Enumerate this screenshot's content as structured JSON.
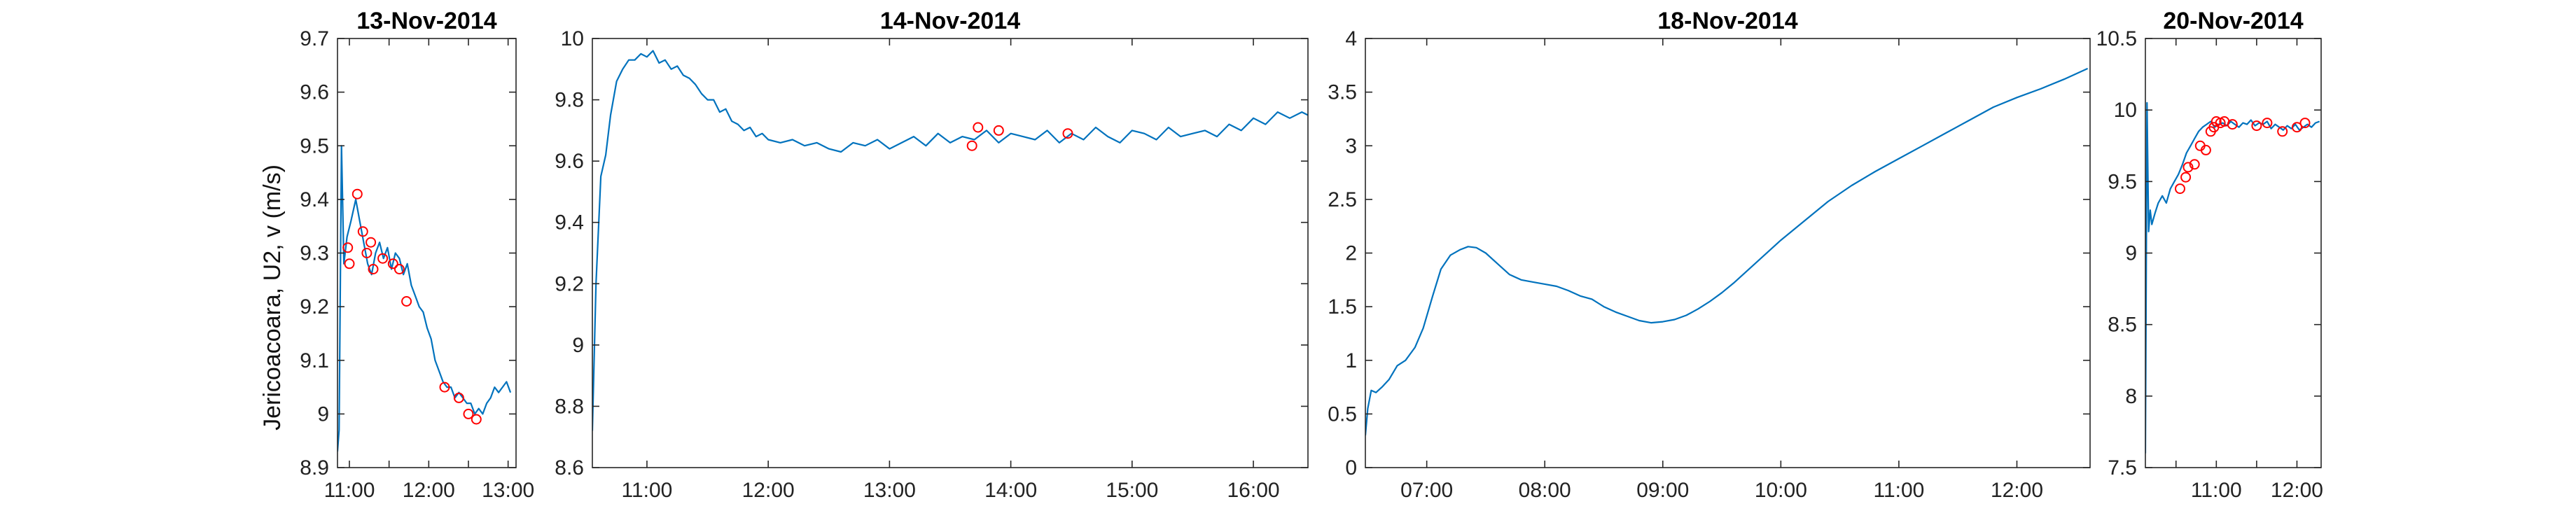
{
  "colors": {
    "series": "#0072BD",
    "markers": "#FF0000",
    "axes": "#262626"
  },
  "figure": {
    "shared_ylabel": "Jericoacoara, U2, v (m/s)"
  },
  "chart_data": [
    {
      "type": "line",
      "title": "13-Nov-2014",
      "xlabel": "",
      "ylabel": "Jericoacoara, U2, v (m/s)",
      "x_unit": "hour of day (decimal)",
      "xlim": [
        10.85,
        13.1
      ],
      "ylim": [
        8.9,
        9.7
      ],
      "xticks": [
        11,
        11.5,
        12,
        12.5,
        13
      ],
      "xtick_labels": [
        "11:00",
        "",
        "12:00",
        "",
        "13:00"
      ],
      "yticks": [
        8.9,
        9.0,
        9.1,
        9.2,
        9.3,
        9.4,
        9.5,
        9.6,
        9.7
      ],
      "ytick_labels": [
        "8.9",
        "9",
        "9.1",
        "9.2",
        "9.3",
        "9.4",
        "9.5",
        "9.6",
        "9.7"
      ],
      "grid": false,
      "series": [
        {
          "style": "line",
          "x": [
            10.85,
            10.87,
            10.9,
            10.93,
            10.97,
            11.02,
            11.08,
            11.13,
            11.18,
            11.23,
            11.28,
            11.33,
            11.38,
            11.43,
            11.48,
            11.53,
            11.58,
            11.63,
            11.68,
            11.73,
            11.78,
            11.83,
            11.88,
            11.93,
            11.98,
            12.03,
            12.08,
            12.13,
            12.18,
            12.23,
            12.28,
            12.33,
            12.38,
            12.43,
            12.48,
            12.53,
            12.58,
            12.63,
            12.68,
            12.73,
            12.78,
            12.83,
            12.88,
            12.93,
            12.98,
            13.03
          ],
          "y": [
            8.93,
            8.97,
            9.5,
            9.28,
            9.33,
            9.36,
            9.4,
            9.36,
            9.32,
            9.28,
            9.26,
            9.3,
            9.32,
            9.29,
            9.31,
            9.27,
            9.3,
            9.29,
            9.26,
            9.28,
            9.24,
            9.22,
            9.2,
            9.19,
            9.16,
            9.14,
            9.1,
            9.08,
            9.06,
            9.05,
            9.05,
            9.03,
            9.04,
            9.03,
            9.02,
            9.02,
            9.0,
            9.01,
            9.0,
            9.02,
            9.03,
            9.05,
            9.04,
            9.05,
            9.06,
            9.04
          ]
        },
        {
          "style": "markers",
          "x": [
            10.98,
            11.0,
            11.1,
            11.17,
            11.22,
            11.27,
            11.3,
            11.42,
            11.55,
            11.63,
            11.72,
            12.2,
            12.38,
            12.5,
            12.6
          ],
          "y": [
            9.31,
            9.28,
            9.41,
            9.34,
            9.3,
            9.32,
            9.27,
            9.29,
            9.28,
            9.27,
            9.21,
            9.05,
            9.03,
            9.0,
            8.99
          ]
        }
      ]
    },
    {
      "type": "line",
      "title": "14-Nov-2014",
      "xlabel": "",
      "ylabel": "",
      "x_unit": "hour of day (decimal)",
      "xlim": [
        10.55,
        16.45
      ],
      "ylim": [
        8.6,
        10.0
      ],
      "xticks": [
        11,
        12,
        13,
        14,
        15,
        16
      ],
      "xtick_labels": [
        "11:00",
        "12:00",
        "13:00",
        "14:00",
        "15:00",
        "16:00"
      ],
      "yticks": [
        8.6,
        8.8,
        9.0,
        9.2,
        9.4,
        9.6,
        9.8,
        10.0
      ],
      "ytick_labels": [
        "8.6",
        "8.8",
        "9",
        "9.2",
        "9.4",
        "9.6",
        "9.8",
        "10"
      ],
      "grid": false,
      "series": [
        {
          "style": "line",
          "x": [
            10.55,
            10.58,
            10.62,
            10.66,
            10.7,
            10.75,
            10.8,
            10.85,
            10.9,
            10.95,
            11.0,
            11.05,
            11.1,
            11.15,
            11.2,
            11.25,
            11.3,
            11.35,
            11.4,
            11.45,
            11.5,
            11.55,
            11.6,
            11.65,
            11.7,
            11.75,
            11.8,
            11.85,
            11.9,
            11.95,
            12.0,
            12.1,
            12.2,
            12.3,
            12.4,
            12.5,
            12.6,
            12.7,
            12.8,
            12.9,
            13.0,
            13.1,
            13.2,
            13.3,
            13.4,
            13.5,
            13.6,
            13.7,
            13.8,
            13.9,
            14.0,
            14.1,
            14.2,
            14.3,
            14.4,
            14.5,
            14.6,
            14.7,
            14.8,
            14.9,
            15.0,
            15.1,
            15.2,
            15.3,
            15.4,
            15.5,
            15.6,
            15.7,
            15.8,
            15.9,
            16.0,
            16.1,
            16.2,
            16.3,
            16.4,
            16.45
          ],
          "y": [
            8.72,
            9.2,
            9.55,
            9.62,
            9.75,
            9.86,
            9.9,
            9.93,
            9.93,
            9.95,
            9.94,
            9.96,
            9.92,
            9.93,
            9.9,
            9.91,
            9.88,
            9.87,
            9.85,
            9.82,
            9.8,
            9.8,
            9.76,
            9.77,
            9.73,
            9.72,
            9.7,
            9.71,
            9.68,
            9.69,
            9.67,
            9.66,
            9.67,
            9.65,
            9.66,
            9.64,
            9.63,
            9.66,
            9.65,
            9.67,
            9.64,
            9.66,
            9.68,
            9.65,
            9.69,
            9.66,
            9.68,
            9.67,
            9.7,
            9.66,
            9.69,
            9.68,
            9.67,
            9.7,
            9.66,
            9.69,
            9.67,
            9.71,
            9.68,
            9.66,
            9.7,
            9.69,
            9.67,
            9.71,
            9.68,
            9.69,
            9.7,
            9.68,
            9.72,
            9.7,
            9.74,
            9.72,
            9.76,
            9.74,
            9.76,
            9.75
          ]
        },
        {
          "style": "markers",
          "x": [
            13.68,
            13.73,
            13.9,
            14.47
          ],
          "y": [
            9.65,
            9.71,
            9.7,
            9.69
          ]
        }
      ]
    },
    {
      "type": "line",
      "title": "18-Nov-2014",
      "xlabel": "",
      "ylabel": "",
      "x_unit": "hour of day (decimal)",
      "xlim": [
        6.48,
        12.62
      ],
      "ylim": [
        0,
        4
      ],
      "xticks": [
        7,
        8,
        9,
        10,
        11,
        12
      ],
      "xtick_labels": [
        "07:00",
        "08:00",
        "09:00",
        "10:00",
        "11:00",
        "12:00"
      ],
      "yticks": [
        0,
        0.5,
        1,
        1.5,
        2,
        2.5,
        3,
        3.5,
        4
      ],
      "ytick_labels": [
        "0",
        "0.5",
        "1",
        "1.5",
        "2",
        "2.5",
        "3",
        "3.5",
        "4"
      ],
      "grid": false,
      "series": [
        {
          "style": "line",
          "x": [
            6.48,
            6.5,
            6.53,
            6.57,
            6.62,
            6.68,
            6.75,
            6.82,
            6.9,
            6.97,
            7.05,
            7.12,
            7.2,
            7.28,
            7.35,
            7.42,
            7.5,
            7.6,
            7.7,
            7.8,
            7.9,
            8.0,
            8.1,
            8.2,
            8.3,
            8.4,
            8.5,
            8.6,
            8.7,
            8.8,
            8.9,
            9.0,
            9.1,
            9.2,
            9.3,
            9.4,
            9.5,
            9.6,
            9.7,
            9.8,
            9.9,
            10.0,
            10.2,
            10.4,
            10.6,
            10.8,
            11.0,
            11.2,
            11.4,
            11.6,
            11.8,
            12.0,
            12.2,
            12.4,
            12.6
          ],
          "y": [
            0.3,
            0.55,
            0.72,
            0.7,
            0.75,
            0.82,
            0.95,
            1.0,
            1.12,
            1.3,
            1.6,
            1.85,
            1.98,
            2.03,
            2.06,
            2.05,
            2.0,
            1.9,
            1.8,
            1.75,
            1.73,
            1.71,
            1.69,
            1.65,
            1.6,
            1.57,
            1.5,
            1.45,
            1.41,
            1.37,
            1.35,
            1.36,
            1.38,
            1.42,
            1.48,
            1.55,
            1.63,
            1.72,
            1.82,
            1.92,
            2.02,
            2.12,
            2.3,
            2.48,
            2.63,
            2.76,
            2.88,
            3.0,
            3.12,
            3.24,
            3.36,
            3.45,
            3.53,
            3.62,
            3.72
          ]
        }
      ]
    },
    {
      "type": "line",
      "title": "20-Nov-2014",
      "xlabel": "",
      "ylabel": "",
      "x_unit": "hour of day (decimal)",
      "xlim": [
        10.12,
        12.3
      ],
      "ylim": [
        7.5,
        10.5
      ],
      "xticks": [
        10.5,
        11,
        11.5,
        12
      ],
      "xtick_labels": [
        "",
        "11:00",
        "",
        "12:00"
      ],
      "yticks": [
        7.5,
        8.0,
        8.5,
        9.0,
        9.5,
        10.0,
        10.5
      ],
      "ytick_labels": [
        "7.5",
        "8",
        "8.5",
        "9",
        "9.5",
        "10",
        "10.5"
      ],
      "grid": false,
      "series": [
        {
          "style": "line",
          "x": [
            10.12,
            10.14,
            10.16,
            10.18,
            10.2,
            10.24,
            10.28,
            10.33,
            10.38,
            10.43,
            10.48,
            10.53,
            10.58,
            10.63,
            10.68,
            10.73,
            10.78,
            10.83,
            10.88,
            10.93,
            10.98,
            11.03,
            11.08,
            11.13,
            11.18,
            11.23,
            11.28,
            11.33,
            11.38,
            11.43,
            11.48,
            11.53,
            11.58,
            11.63,
            11.68,
            11.73,
            11.78,
            11.83,
            11.88,
            11.93,
            11.98,
            12.03,
            12.08,
            12.13,
            12.18,
            12.23,
            12.28
          ],
          "y": [
            7.6,
            10.05,
            9.15,
            9.3,
            9.2,
            9.28,
            9.35,
            9.4,
            9.35,
            9.45,
            9.5,
            9.55,
            9.62,
            9.7,
            9.75,
            9.8,
            9.85,
            9.88,
            9.9,
            9.92,
            9.88,
            9.9,
            9.91,
            9.89,
            9.92,
            9.9,
            9.88,
            9.91,
            9.9,
            9.93,
            9.89,
            9.91,
            9.9,
            9.92,
            9.87,
            9.9,
            9.88,
            9.86,
            9.89,
            9.87,
            9.9,
            9.86,
            9.88,
            9.9,
            9.88,
            9.91,
            9.92
          ]
        },
        {
          "style": "markers",
          "x": [
            10.55,
            10.62,
            10.65,
            10.73,
            10.8,
            10.87,
            10.93,
            10.97,
            11.0,
            11.05,
            11.1,
            11.2,
            11.5,
            11.63,
            11.82,
            12.0,
            12.1
          ],
          "y": [
            9.45,
            9.53,
            9.6,
            9.62,
            9.75,
            9.72,
            9.85,
            9.88,
            9.92,
            9.91,
            9.92,
            9.9,
            9.89,
            9.91,
            9.85,
            9.88,
            9.91
          ]
        }
      ]
    }
  ]
}
